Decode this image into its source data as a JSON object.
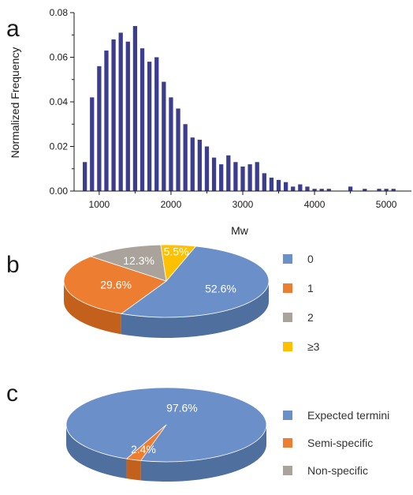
{
  "colors": {
    "bar": "#3d3d8f",
    "blue": "#6b8fc8",
    "blue_side": "#4f6f9f",
    "orange": "#ed7d31",
    "orange_side": "#c2601c",
    "gray": "#aaa39b",
    "gray_side": "#857d75",
    "yellow": "#ffc000",
    "yellow_side": "#c99400",
    "axis": "#1a1a1a"
  },
  "chart_data": [
    {
      "panel": "a",
      "type": "bar",
      "xlabel": "Mw",
      "ylabel": "Normalized Frequency",
      "xlim": [
        650,
        5350
      ],
      "ylim": [
        0,
        0.08
      ],
      "xticks": [
        1000,
        2000,
        3000,
        4000,
        5000
      ],
      "yticks": [
        "0.00",
        "0.02",
        "0.04",
        "0.06",
        "0.08"
      ],
      "bin_width": 100,
      "x": [
        800,
        900,
        1000,
        1100,
        1200,
        1300,
        1400,
        1500,
        1600,
        1700,
        1800,
        1900,
        2000,
        2100,
        2200,
        2300,
        2400,
        2500,
        2600,
        2700,
        2800,
        2900,
        3000,
        3100,
        3200,
        3300,
        3400,
        3500,
        3600,
        3700,
        3800,
        3900,
        4000,
        4100,
        4200,
        4500,
        4700,
        4900,
        5000,
        5100
      ],
      "values": [
        0.013,
        0.042,
        0.056,
        0.063,
        0.068,
        0.071,
        0.067,
        0.074,
        0.064,
        0.058,
        0.06,
        0.049,
        0.042,
        0.037,
        0.03,
        0.024,
        0.023,
        0.02,
        0.015,
        0.012,
        0.016,
        0.013,
        0.011,
        0.012,
        0.013,
        0.008,
        0.006,
        0.005,
        0.004,
        0.002,
        0.003,
        0.002,
        0.001,
        0.001,
        0.001,
        0.002,
        0.001,
        0.001,
        0.001,
        0.001
      ]
    },
    {
      "panel": "b",
      "type": "pie",
      "style": "3d",
      "labels": [
        "0",
        "1",
        "2",
        "≥3"
      ],
      "values": [
        52.6,
        29.6,
        12.3,
        5.5
      ],
      "value_labels": [
        "52.6%",
        "29.6%",
        "12.3%",
        "5.5%"
      ],
      "colors": [
        "#6b8fc8",
        "#ed7d31",
        "#aaa39b",
        "#ffc000"
      ],
      "legend": "right"
    },
    {
      "panel": "c",
      "type": "pie",
      "style": "3d",
      "labels": [
        "Expected termini",
        "Semi-specific",
        "Non-specific"
      ],
      "values": [
        97.6,
        2.4,
        0
      ],
      "value_labels": [
        "97.6%",
        "2.4%",
        ""
      ],
      "colors": [
        "#6b8fc8",
        "#ed7d31",
        "#aaa39b"
      ],
      "legend": "right"
    }
  ]
}
